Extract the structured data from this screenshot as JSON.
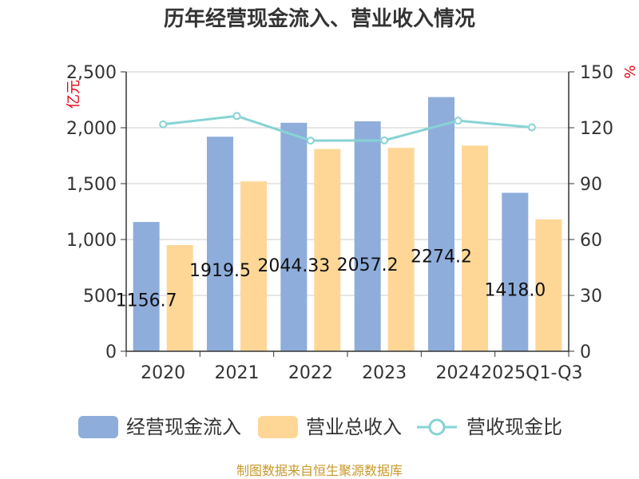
{
  "chart_data": {
    "type": "bar",
    "title": "历年经营现金流入、营业收入情况",
    "categories": [
      "2020",
      "2021",
      "2022",
      "2023",
      "2024",
      "2025Q1-Q3"
    ],
    "series": [
      {
        "name": "经营现金流入",
        "type": "bar",
        "axis": "left",
        "color": "#8eaddb",
        "values": [
          1156.7,
          1919.5,
          2044.33,
          2057.2,
          2274.2,
          1418.0
        ],
        "labels": [
          "1156.7",
          "1919.5",
          "2044.33",
          "2057.2",
          "2274.2",
          "1418.0"
        ]
      },
      {
        "name": "营业总收入",
        "type": "bar",
        "axis": "left",
        "color": "#fed797",
        "values": [
          950,
          1520,
          1810,
          1820,
          1840,
          1180
        ]
      },
      {
        "name": "营收现金比",
        "type": "line",
        "axis": "right",
        "color": "#87d3d4",
        "values": [
          121.8,
          126.3,
          113.1,
          113.2,
          123.8,
          120.2
        ]
      }
    ],
    "left_axis": {
      "label": "亿元",
      "min": 0,
      "max": 2500,
      "ticks": [
        0,
        500,
        1000,
        1500,
        2000,
        2500
      ],
      "tick_labels": [
        "0",
        "500",
        "1,000",
        "1,500",
        "2,000",
        "2,500"
      ]
    },
    "right_axis": {
      "label": "%",
      "min": 0,
      "max": 150,
      "ticks": [
        0,
        30,
        60,
        90,
        120,
        150
      ],
      "tick_labels": [
        "0",
        "30",
        "60",
        "90",
        "120",
        "150"
      ]
    },
    "grid": true,
    "legend_position": "bottom",
    "source": "制图数据来自恒生聚源数据库"
  }
}
